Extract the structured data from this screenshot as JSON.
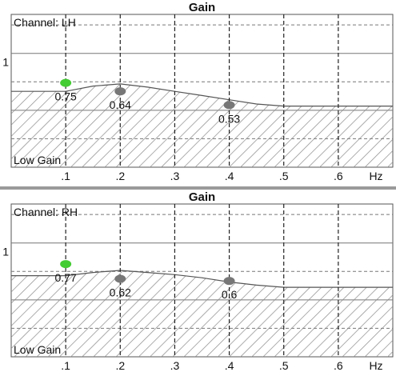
{
  "chart_data": [
    {
      "type": "line",
      "title": "Gain",
      "channel_label": "Channel: LH",
      "region_label": "Low Gain",
      "x_unit": "Hz",
      "x_ticks": [
        ".1",
        ".2",
        ".3",
        ".4",
        ".5",
        ".6"
      ],
      "x_range": [
        0,
        0.7
      ],
      "y_ticks": [
        "1"
      ],
      "y_range": [
        0,
        1.45
      ],
      "grid": true,
      "curve": {
        "x": [
          0,
          0.05,
          0.1,
          0.15,
          0.2,
          0.25,
          0.3,
          0.35,
          0.4,
          0.45,
          0.5,
          0.55,
          0.6,
          0.65,
          0.7
        ],
        "y": [
          0.72,
          0.72,
          0.72,
          0.77,
          0.79,
          0.76,
          0.72,
          0.68,
          0.64,
          0.6,
          0.58,
          0.58,
          0.58,
          0.58,
          0.58
        ]
      },
      "points": [
        {
          "x": 0.1,
          "y": 0.8,
          "label": "0.75",
          "color": "#44cc33"
        },
        {
          "x": 0.2,
          "y": 0.72,
          "label": "0.64",
          "color": "#777777"
        },
        {
          "x": 0.4,
          "y": 0.59,
          "label": "0.53",
          "color": "#777777"
        }
      ]
    },
    {
      "type": "line",
      "title": "Gain",
      "channel_label": "Channel: RH",
      "region_label": "Low Gain",
      "x_unit": "Hz",
      "x_ticks": [
        ".1",
        ".2",
        ".3",
        ".4",
        ".5",
        ".6"
      ],
      "x_range": [
        0,
        0.7
      ],
      "y_ticks": [
        "1"
      ],
      "y_range": [
        0,
        1.45
      ],
      "grid": true,
      "curve": {
        "x": [
          0,
          0.05,
          0.1,
          0.15,
          0.2,
          0.25,
          0.3,
          0.35,
          0.4,
          0.45,
          0.5,
          0.55,
          0.6,
          0.65,
          0.7
        ],
        "y": [
          0.77,
          0.77,
          0.77,
          0.8,
          0.82,
          0.8,
          0.78,
          0.75,
          0.71,
          0.68,
          0.66,
          0.66,
          0.66,
          0.66,
          0.66
        ]
      },
      "points": [
        {
          "x": 0.1,
          "y": 0.88,
          "label": "0.77",
          "color": "#44cc33"
        },
        {
          "x": 0.2,
          "y": 0.74,
          "label": "0.62",
          "color": "#777777"
        },
        {
          "x": 0.4,
          "y": 0.72,
          "label": "0.6",
          "color": "#777777"
        }
      ]
    }
  ]
}
